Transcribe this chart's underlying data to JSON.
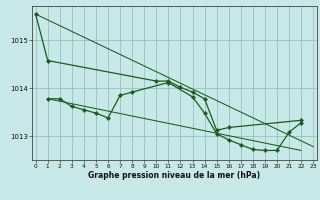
{
  "title": "Graphe pression niveau de la mer (hPa)",
  "bg_color": "#c8e8e8",
  "grid_color": "#88bbbb",
  "line_color": "#1a5c1a",
  "x_hours": [
    0,
    1,
    2,
    3,
    4,
    5,
    6,
    7,
    8,
    9,
    10,
    11,
    12,
    13,
    14,
    15,
    16,
    17,
    18,
    19,
    20,
    21,
    22,
    23
  ],
  "line1_x": [
    0,
    1,
    10,
    11,
    12,
    13,
    14,
    15,
    16,
    22
  ],
  "line1_y": [
    1015.55,
    1014.58,
    1014.15,
    1014.15,
    1014.02,
    1013.92,
    1013.78,
    1013.12,
    1013.18,
    1013.33
  ],
  "line2_x": [
    1,
    2,
    3,
    4,
    5,
    6,
    7,
    8,
    11,
    13,
    14,
    15,
    16,
    17,
    18,
    19,
    20,
    21,
    22
  ],
  "line2_y": [
    1013.78,
    1013.78,
    1013.62,
    1013.55,
    1013.48,
    1013.38,
    1013.85,
    1013.92,
    1014.12,
    1013.82,
    1013.48,
    1013.05,
    1012.92,
    1012.82,
    1012.72,
    1012.7,
    1012.7,
    1013.08,
    1013.28
  ],
  "trend1_x": [
    0,
    23
  ],
  "trend1_y": [
    1015.55,
    1012.78
  ],
  "trend2_x": [
    1,
    22
  ],
  "trend2_y": [
    1013.78,
    1012.7
  ],
  "ylim": [
    1012.5,
    1015.72
  ],
  "xlim": [
    -0.3,
    23.3
  ],
  "yticks": [
    1013,
    1014,
    1015
  ],
  "xticks": [
    0,
    1,
    2,
    3,
    4,
    5,
    6,
    7,
    8,
    9,
    10,
    11,
    12,
    13,
    14,
    15,
    16,
    17,
    18,
    19,
    20,
    21,
    22,
    23
  ]
}
